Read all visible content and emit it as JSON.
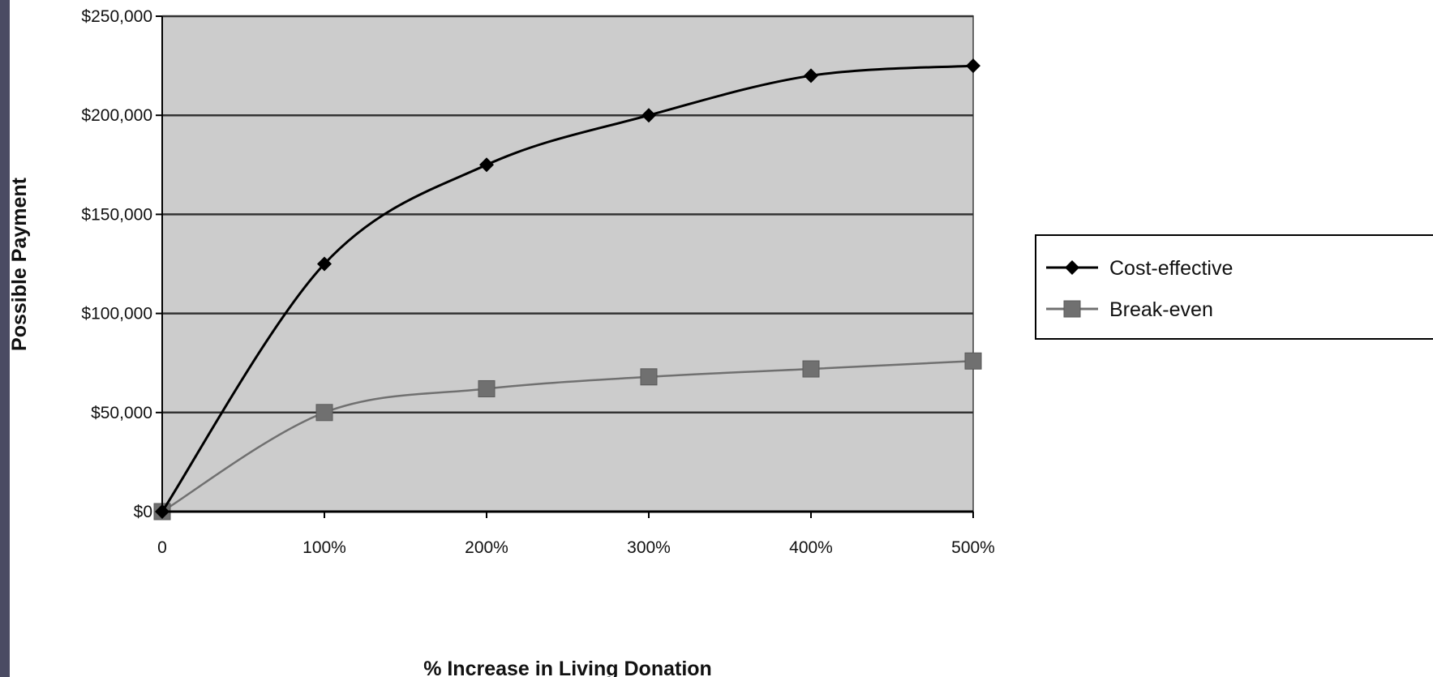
{
  "chart_data": {
    "type": "line",
    "title": "",
    "xlabel": "% Increase in Living Donation",
    "ylabel": "Possible Payment",
    "x": [
      0,
      100,
      200,
      300,
      400,
      500
    ],
    "x_tick_labels": [
      "0",
      "100%",
      "200%",
      "300%",
      "400%",
      "500%"
    ],
    "ylim": [
      0,
      250000
    ],
    "y_ticks": [
      0,
      50000,
      100000,
      150000,
      200000,
      250000
    ],
    "y_tick_labels": [
      "$0",
      "$50,000",
      "$100,000",
      "$150,000",
      "$200,000",
      "$250,000"
    ],
    "grid": true,
    "plot_background": "#cccccc",
    "legend": {
      "position": "right"
    },
    "series": [
      {
        "name": "Cost-effective",
        "values": [
          0,
          125000,
          175000,
          200000,
          220000,
          225000
        ],
        "color": "#000000",
        "marker": "diamond"
      },
      {
        "name": "Break-even",
        "values": [
          0,
          50000,
          62000,
          68000,
          72000,
          76000
        ],
        "color": "#707070",
        "marker": "square"
      }
    ]
  }
}
